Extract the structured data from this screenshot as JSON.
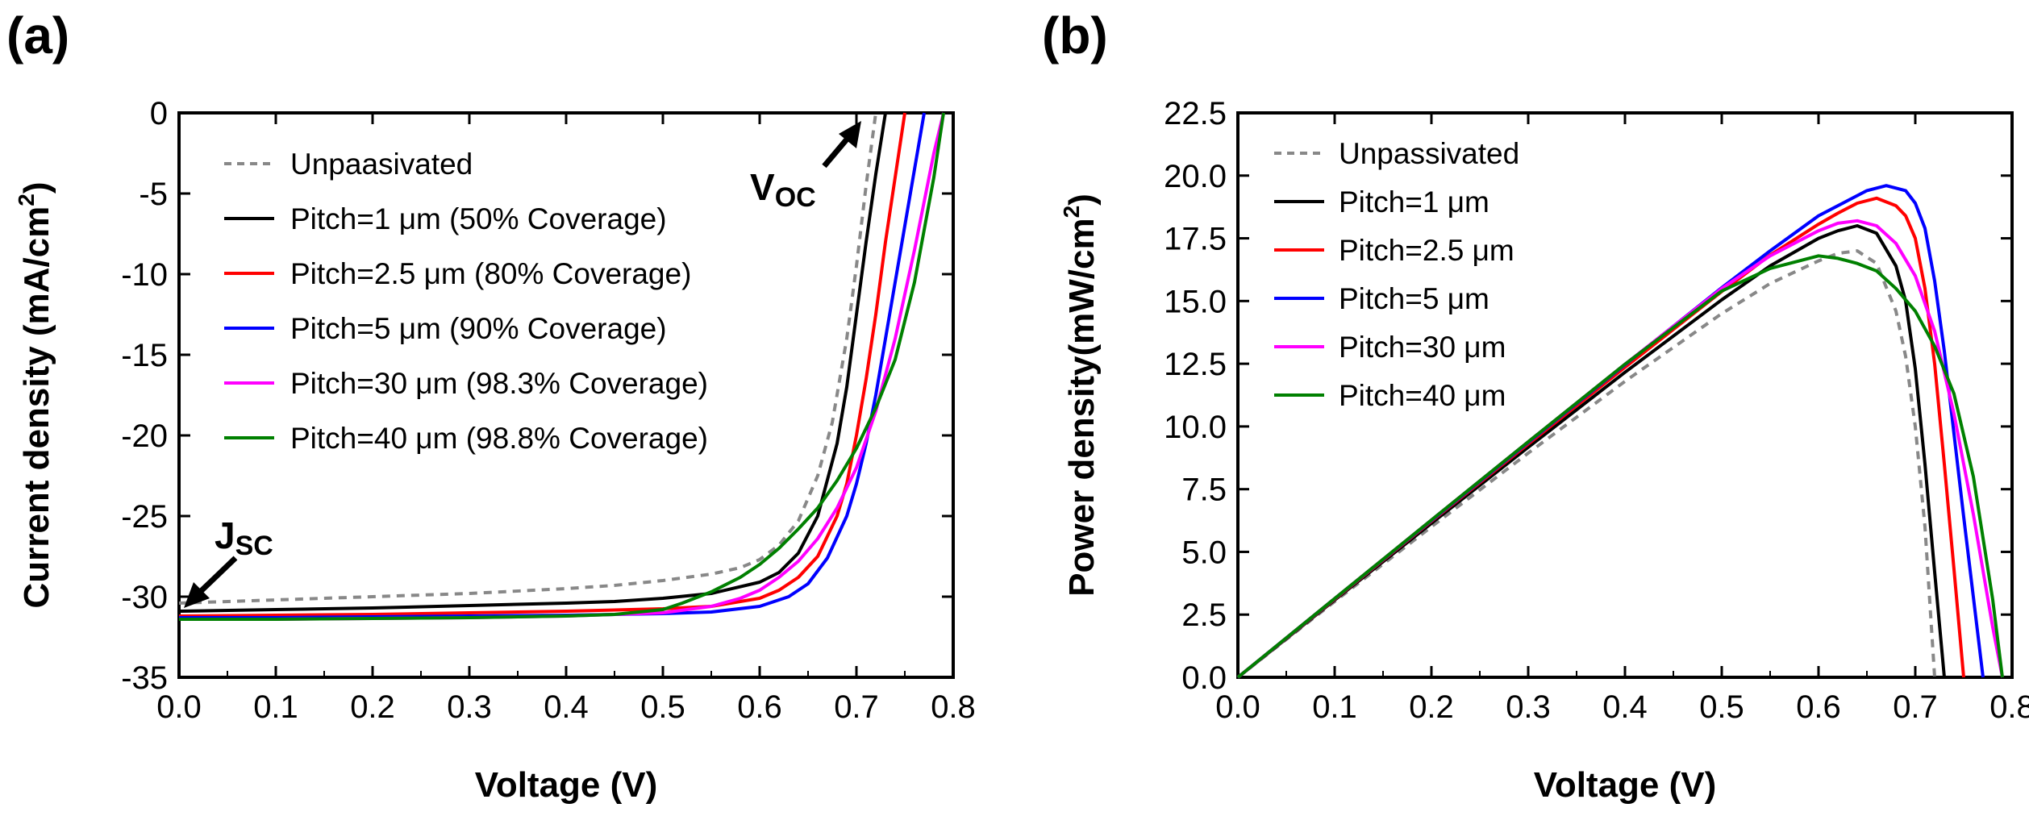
{
  "figure": {
    "panel_a_label": "(a)",
    "panel_b_label": "(b)"
  },
  "chart_data": [
    {
      "type": "line",
      "panel": "(a)",
      "title": "",
      "xlabel": "Voltage (V)",
      "ylabel_main": "Current density (mA/cm",
      "ylabel_sup": "2",
      "ylabel_close": ")",
      "xlim": [
        0.0,
        0.8
      ],
      "ylim": [
        -35,
        0
      ],
      "x_ticks": [
        0.0,
        0.1,
        0.2,
        0.3,
        0.4,
        0.5,
        0.6,
        0.7,
        0.8
      ],
      "x_tick_labels": [
        "0.0",
        "0.1",
        "0.2",
        "0.3",
        "0.4",
        "0.5",
        "0.6",
        "0.7",
        "0.8"
      ],
      "y_ticks": [
        0,
        -5,
        -10,
        -15,
        -20,
        -25,
        -30,
        -35
      ],
      "y_tick_labels": [
        "0",
        "-5",
        "-10",
        "-15",
        "-20",
        "-25",
        "-30",
        "-35"
      ],
      "legend_position": "top-left",
      "annotations": [
        {
          "text": "J",
          "sub": "SC",
          "points_to": [
            0.0,
            -30.5
          ]
        },
        {
          "text": "V",
          "sub": "OC",
          "points_to": [
            0.705,
            0
          ]
        }
      ],
      "series": [
        {
          "name": "Unpaasivated",
          "legend_label": "Unpaasivated",
          "color": "#888888",
          "dashed": true,
          "x": [
            0.0,
            0.1,
            0.2,
            0.3,
            0.4,
            0.45,
            0.5,
            0.55,
            0.58,
            0.6,
            0.62,
            0.64,
            0.66,
            0.675,
            0.69,
            0.7,
            0.71,
            0.72
          ],
          "y": [
            -30.4,
            -30.2,
            -30.0,
            -29.8,
            -29.5,
            -29.3,
            -29.0,
            -28.6,
            -28.2,
            -27.7,
            -26.8,
            -25.3,
            -22.5,
            -19.2,
            -14.0,
            -9.5,
            -4.5,
            0.0
          ]
        },
        {
          "name": "Pitch=1 μm (50% Coverage)",
          "legend_label": "Pitch=1 μm (50% Coverage)",
          "color": "#000000",
          "dashed": false,
          "x": [
            0.0,
            0.1,
            0.2,
            0.3,
            0.4,
            0.45,
            0.5,
            0.55,
            0.6,
            0.62,
            0.64,
            0.66,
            0.68,
            0.69,
            0.7,
            0.71,
            0.72,
            0.73
          ],
          "y": [
            -30.9,
            -30.8,
            -30.7,
            -30.55,
            -30.4,
            -30.3,
            -30.1,
            -29.8,
            -29.1,
            -28.5,
            -27.3,
            -25.0,
            -20.5,
            -17.0,
            -12.5,
            -8.0,
            -3.8,
            0.0
          ]
        },
        {
          "name": "Pitch=2.5 μm (80% Coverage)",
          "legend_label": "Pitch=2.5 μm (80% Coverage)",
          "color": "#ff0000",
          "dashed": false,
          "x": [
            0.0,
            0.1,
            0.2,
            0.3,
            0.4,
            0.5,
            0.55,
            0.6,
            0.62,
            0.64,
            0.66,
            0.68,
            0.69,
            0.7,
            0.71,
            0.72,
            0.73,
            0.74,
            0.75
          ],
          "y": [
            -31.2,
            -31.15,
            -31.1,
            -31.0,
            -30.9,
            -30.75,
            -30.6,
            -30.1,
            -29.6,
            -28.8,
            -27.5,
            -25.0,
            -23.0,
            -20.0,
            -16.5,
            -12.5,
            -8.0,
            -4.0,
            0.0
          ]
        },
        {
          "name": "Pitch=5 μm (90% Coverage)",
          "legend_label": "Pitch=5 μm (90% Coverage)",
          "color": "#0000ff",
          "dashed": false,
          "x": [
            0.0,
            0.1,
            0.2,
            0.3,
            0.4,
            0.5,
            0.55,
            0.6,
            0.63,
            0.65,
            0.67,
            0.69,
            0.7,
            0.71,
            0.72,
            0.73,
            0.74,
            0.75,
            0.76,
            0.77
          ],
          "y": [
            -31.3,
            -31.3,
            -31.25,
            -31.2,
            -31.15,
            -31.05,
            -30.95,
            -30.6,
            -30.0,
            -29.2,
            -27.6,
            -25.0,
            -23.0,
            -20.5,
            -17.5,
            -14.0,
            -10.5,
            -7.0,
            -3.5,
            0.0
          ]
        },
        {
          "name": "Pitch=30 μm (98.3% Coverage)",
          "legend_label": "Pitch=30 μm (98.3% Coverage)",
          "color": "#ff00ff",
          "dashed": false,
          "x": [
            0.0,
            0.1,
            0.2,
            0.3,
            0.4,
            0.5,
            0.55,
            0.58,
            0.6,
            0.62,
            0.64,
            0.66,
            0.68,
            0.7,
            0.72,
            0.74,
            0.76,
            0.78,
            0.79
          ],
          "y": [
            -31.4,
            -31.4,
            -31.35,
            -31.3,
            -31.2,
            -31.0,
            -30.6,
            -30.1,
            -29.6,
            -28.8,
            -27.8,
            -26.4,
            -24.5,
            -22.0,
            -18.5,
            -14.0,
            -8.5,
            -2.5,
            0.0
          ]
        },
        {
          "name": "Pitch=40 μm (98.8% Coverage)",
          "legend_label": "Pitch=40 μm (98.8% Coverage)",
          "color": "#008000",
          "dashed": false,
          "x": [
            0.0,
            0.1,
            0.2,
            0.3,
            0.4,
            0.45,
            0.5,
            0.52,
            0.55,
            0.58,
            0.6,
            0.62,
            0.64,
            0.66,
            0.68,
            0.7,
            0.72,
            0.74,
            0.76,
            0.78,
            0.79
          ],
          "y": [
            -31.4,
            -31.4,
            -31.35,
            -31.3,
            -31.2,
            -31.1,
            -30.8,
            -30.4,
            -29.7,
            -28.8,
            -28.0,
            -27.0,
            -25.8,
            -24.5,
            -22.8,
            -20.8,
            -18.3,
            -15.3,
            -10.5,
            -4.0,
            0.0
          ]
        }
      ]
    },
    {
      "type": "line",
      "panel": "(b)",
      "title": "",
      "xlabel": "Voltage (V)",
      "ylabel_main": "Power density(mW/cm",
      "ylabel_sup": "2",
      "ylabel_close": ")",
      "xlim": [
        0.0,
        0.8
      ],
      "ylim": [
        0.0,
        22.5
      ],
      "x_ticks": [
        0.0,
        0.1,
        0.2,
        0.3,
        0.4,
        0.5,
        0.6,
        0.7,
        0.8
      ],
      "x_tick_labels": [
        "0.0",
        "0.1",
        "0.2",
        "0.3",
        "0.4",
        "0.5",
        "0.6",
        "0.7",
        "0.8"
      ],
      "y_ticks": [
        0.0,
        2.5,
        5.0,
        7.5,
        10.0,
        12.5,
        15.0,
        17.5,
        20.0,
        22.5
      ],
      "y_tick_labels": [
        "0.0",
        "2.5",
        "5.0",
        "7.5",
        "10.0",
        "12.5",
        "15.0",
        "17.5",
        "20.0",
        "22.5"
      ],
      "legend_position": "top-left",
      "series": [
        {
          "name": "Unpassivated",
          "legend_label": "Unpassivated",
          "color": "#888888",
          "dashed": true,
          "x": [
            0.0,
            0.1,
            0.2,
            0.3,
            0.4,
            0.5,
            0.55,
            0.6,
            0.62,
            0.64,
            0.66,
            0.68,
            0.69,
            0.7,
            0.71,
            0.72
          ],
          "y": [
            0.0,
            3.02,
            6.0,
            8.94,
            11.8,
            14.5,
            15.7,
            16.6,
            16.9,
            17.0,
            16.5,
            14.6,
            12.8,
            10.0,
            6.0,
            0.0
          ]
        },
        {
          "name": "Pitch=1 μm",
          "legend_label": "Pitch=1 μm",
          "color": "#000000",
          "dashed": false,
          "x": [
            0.0,
            0.1,
            0.2,
            0.3,
            0.4,
            0.5,
            0.55,
            0.6,
            0.62,
            0.64,
            0.66,
            0.68,
            0.69,
            0.7,
            0.71,
            0.72,
            0.73
          ],
          "y": [
            0.0,
            3.08,
            6.14,
            9.17,
            12.16,
            15.05,
            16.4,
            17.5,
            17.8,
            18.0,
            17.7,
            16.4,
            15.0,
            12.3,
            8.5,
            4.2,
            0.0
          ]
        },
        {
          "name": "Pitch=2.5 μm",
          "legend_label": "Pitch=2.5 μm",
          "color": "#ff0000",
          "dashed": false,
          "x": [
            0.0,
            0.1,
            0.2,
            0.3,
            0.4,
            0.5,
            0.55,
            0.6,
            0.62,
            0.64,
            0.66,
            0.68,
            0.69,
            0.7,
            0.71,
            0.72,
            0.73,
            0.74,
            0.75
          ],
          "y": [
            0.0,
            3.11,
            6.22,
            9.3,
            12.36,
            15.38,
            16.83,
            18.06,
            18.5,
            18.9,
            19.1,
            18.8,
            18.4,
            17.5,
            15.5,
            12.5,
            8.5,
            4.3,
            0.0
          ]
        },
        {
          "name": "Pitch=5 μm",
          "legend_label": "Pitch=5 μm",
          "color": "#0000ff",
          "dashed": false,
          "x": [
            0.0,
            0.1,
            0.2,
            0.3,
            0.4,
            0.5,
            0.55,
            0.6,
            0.63,
            0.65,
            0.67,
            0.69,
            0.7,
            0.71,
            0.72,
            0.73,
            0.74,
            0.75,
            0.76,
            0.77
          ],
          "y": [
            0.0,
            3.13,
            6.25,
            9.36,
            12.46,
            15.53,
            17.0,
            18.4,
            19.0,
            19.4,
            19.6,
            19.4,
            18.9,
            17.9,
            15.8,
            13.0,
            9.7,
            6.4,
            3.2,
            0.0
          ]
        },
        {
          "name": "Pitch=30 μm",
          "legend_label": "Pitch=30 μm",
          "color": "#ff00ff",
          "dashed": false,
          "x": [
            0.0,
            0.1,
            0.2,
            0.3,
            0.4,
            0.5,
            0.55,
            0.6,
            0.62,
            0.64,
            0.66,
            0.68,
            0.7,
            0.72,
            0.74,
            0.76,
            0.78,
            0.79
          ],
          "y": [
            0.0,
            3.14,
            6.27,
            9.39,
            12.48,
            15.5,
            16.8,
            17.8,
            18.1,
            18.2,
            18.0,
            17.3,
            16.0,
            13.8,
            10.5,
            6.5,
            2.0,
            0.0
          ]
        },
        {
          "name": "Pitch=40 μm",
          "legend_label": "Pitch=40 μm",
          "color": "#008000",
          "dashed": false,
          "x": [
            0.0,
            0.1,
            0.2,
            0.3,
            0.4,
            0.5,
            0.55,
            0.6,
            0.62,
            0.64,
            0.66,
            0.68,
            0.7,
            0.72,
            0.74,
            0.76,
            0.78,
            0.79
          ],
          "y": [
            0.0,
            3.14,
            6.27,
            9.39,
            12.48,
            15.4,
            16.3,
            16.8,
            16.7,
            16.5,
            16.2,
            15.5,
            14.6,
            13.2,
            11.3,
            8.0,
            3.1,
            0.0
          ]
        }
      ]
    }
  ]
}
